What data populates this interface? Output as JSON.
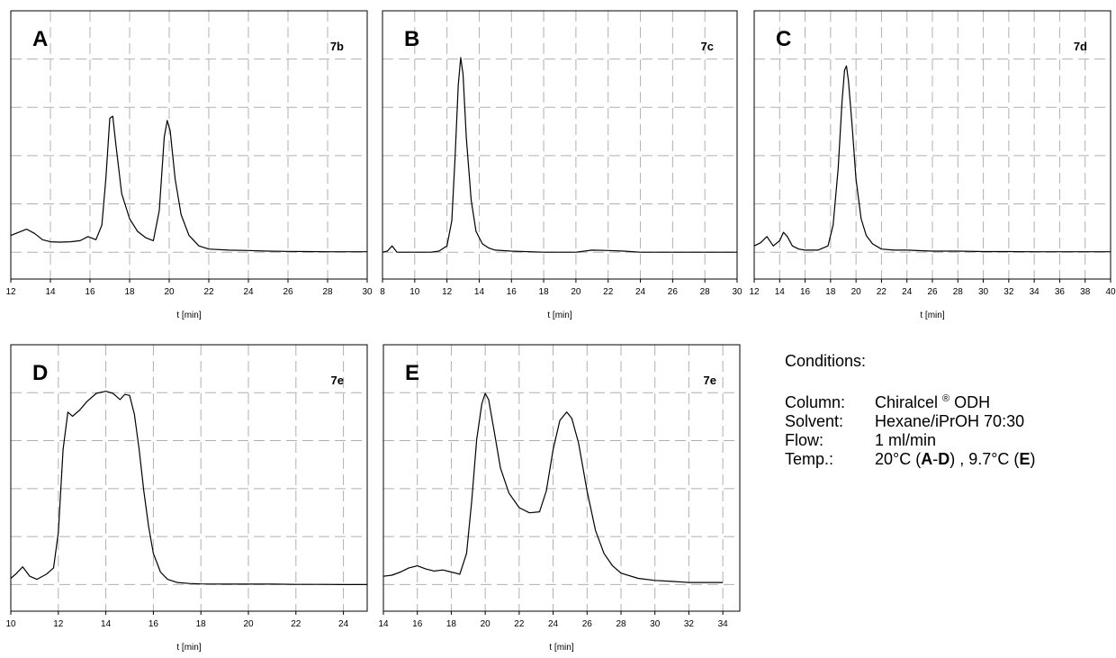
{
  "chart_data": [
    {
      "type": "line",
      "panel": "A",
      "label": "7b",
      "xlabel": "t [min]",
      "xlim": [
        12,
        30
      ],
      "xticks": [
        12,
        14,
        16,
        18,
        20,
        22,
        24,
        26,
        28,
        30
      ],
      "ylim": [
        0,
        10
      ],
      "series": [
        {
          "x": [
            12,
            12.4,
            12.8,
            13.2,
            13.6,
            14,
            14.5,
            15,
            15.5,
            15.9,
            16.3,
            16.6,
            16.8,
            17,
            17.15,
            17.3,
            17.6,
            18,
            18.4,
            18.8,
            19.2,
            19.5,
            19.75,
            19.9,
            20.05,
            20.3,
            20.6,
            21,
            21.5,
            22,
            23,
            24,
            25,
            26,
            27,
            28,
            29,
            30
          ],
          "y": [
            0.8,
            0.95,
            1.1,
            0.9,
            0.6,
            0.5,
            0.48,
            0.5,
            0.55,
            0.75,
            0.6,
            1.3,
            3.5,
            6.4,
            6.5,
            5.2,
            2.8,
            1.6,
            1.0,
            0.7,
            0.55,
            2.0,
            5.5,
            6.3,
            5.8,
            3.5,
            1.8,
            0.8,
            0.3,
            0.15,
            0.1,
            0.08,
            0.05,
            0.04,
            0.03,
            0.02,
            0.02,
            0.02
          ]
        }
      ]
    },
    {
      "type": "line",
      "panel": "B",
      "label": "7c",
      "xlabel": "t [min]",
      "xlim": [
        8,
        30
      ],
      "xticks": [
        8,
        10,
        12,
        14,
        16,
        18,
        20,
        22,
        24,
        26,
        28,
        30
      ],
      "ylim": [
        0,
        10
      ],
      "series": [
        {
          "x": [
            8,
            8.3,
            8.6,
            8.9,
            9.5,
            10,
            10.5,
            11,
            11.5,
            12,
            12.3,
            12.5,
            12.7,
            12.85,
            13,
            13.2,
            13.5,
            13.8,
            14.2,
            14.6,
            15,
            16,
            18,
            20,
            21,
            22,
            23,
            24,
            26,
            28,
            30
          ],
          "y": [
            0,
            0.05,
            0.3,
            0.0,
            0.0,
            0.0,
            0.0,
            0.0,
            0.05,
            0.3,
            1.5,
            4.5,
            8.0,
            9.3,
            8.5,
            5.5,
            2.5,
            1.0,
            0.4,
            0.2,
            0.1,
            0.05,
            0.0,
            0.0,
            0.1,
            0.08,
            0.05,
            0.0,
            0.0,
            0.0,
            0.0
          ]
        }
      ]
    },
    {
      "type": "line",
      "panel": "C",
      "label": "7d",
      "xlabel": "t [min]",
      "xlim": [
        12,
        40
      ],
      "xticks": [
        12,
        14,
        16,
        18,
        20,
        22,
        24,
        26,
        28,
        30,
        32,
        34,
        36,
        38,
        40
      ],
      "ylim": [
        0,
        10
      ],
      "series": [
        {
          "x": [
            12,
            12.5,
            13,
            13.5,
            14,
            14.3,
            14.6,
            15,
            15.5,
            16,
            17,
            17.8,
            18.2,
            18.6,
            18.9,
            19.1,
            19.25,
            19.4,
            19.7,
            20,
            20.4,
            20.8,
            21.3,
            22,
            23,
            24,
            26,
            28,
            30,
            32,
            34,
            36,
            38,
            40
          ],
          "y": [
            0.3,
            0.45,
            0.75,
            0.3,
            0.55,
            0.95,
            0.75,
            0.3,
            0.15,
            0.1,
            0.1,
            0.3,
            1.3,
            4.0,
            7.2,
            8.7,
            8.9,
            8.2,
            6.0,
            3.5,
            1.6,
            0.8,
            0.4,
            0.15,
            0.1,
            0.1,
            0.05,
            0.05,
            0.03,
            0.03,
            0.02,
            0.02,
            0.02,
            0.02
          ]
        }
      ]
    },
    {
      "type": "line",
      "panel": "D",
      "label": "7e",
      "xlabel": "t [min]",
      "xlim": [
        10,
        25
      ],
      "xticks": [
        10,
        12,
        14,
        16,
        18,
        20,
        22,
        24
      ],
      "ylim": [
        0,
        10
      ],
      "series": [
        {
          "x": [
            10,
            10.2,
            10.5,
            10.8,
            11.1,
            11.5,
            11.8,
            12,
            12.2,
            12.4,
            12.6,
            12.9,
            13.2,
            13.6,
            14,
            14.3,
            14.6,
            14.8,
            15,
            15.2,
            15.4,
            15.6,
            15.8,
            16,
            16.3,
            16.6,
            17,
            17.5,
            18,
            19,
            20,
            21,
            22,
            23,
            24,
            25
          ],
          "y": [
            0.3,
            0.5,
            0.85,
            0.4,
            0.25,
            0.5,
            0.8,
            2.5,
            6.5,
            8.3,
            8.1,
            8.4,
            8.8,
            9.2,
            9.3,
            9.2,
            8.9,
            9.15,
            9.1,
            8.2,
            6.5,
            4.5,
            2.8,
            1.5,
            0.6,
            0.25,
            0.1,
            0.05,
            0.03,
            0.02,
            0.02,
            0.02,
            0.01,
            0.01,
            0.0,
            0.0
          ]
        }
      ]
    },
    {
      "type": "line",
      "panel": "E",
      "label": "7e",
      "xlabel": "t [min]",
      "xlim": [
        14,
        35
      ],
      "xticks": [
        14,
        16,
        18,
        20,
        22,
        24,
        26,
        28,
        30,
        32,
        34
      ],
      "ylim": [
        0,
        10
      ],
      "series": [
        {
          "x": [
            14,
            14.5,
            15,
            15.5,
            16,
            16.5,
            17,
            17.5,
            18,
            18.5,
            18.9,
            19.2,
            19.5,
            19.8,
            20,
            20.2,
            20.5,
            20.9,
            21.4,
            22,
            22.6,
            23.2,
            23.6,
            24,
            24.4,
            24.8,
            25.1,
            25.5,
            26,
            26.5,
            27,
            27.5,
            28,
            29,
            30,
            31,
            32,
            33,
            34
          ],
          "y": [
            0.4,
            0.45,
            0.6,
            0.8,
            0.9,
            0.75,
            0.65,
            0.7,
            0.6,
            0.5,
            1.5,
            4.0,
            7.0,
            8.7,
            9.2,
            8.9,
            7.5,
            5.6,
            4.4,
            3.7,
            3.45,
            3.5,
            4.5,
            6.5,
            7.9,
            8.3,
            8.0,
            6.8,
            4.5,
            2.6,
            1.5,
            0.9,
            0.55,
            0.3,
            0.2,
            0.15,
            0.1,
            0.1,
            0.1
          ]
        }
      ]
    }
  ],
  "conditions": {
    "title": "Conditions:",
    "column_key": "Column:",
    "column_value_before": "Chiralcel",
    "column_reg": "®",
    "column_value_after": "ODH",
    "solvent_key": "Solvent:",
    "solvent_value": "Hexane/iPrOH 70:30",
    "flow_key": "Flow:",
    "flow_value": "1 ml/min",
    "temp_key": "Temp.:",
    "temp_part1": "20°C (",
    "temp_bold1": "A",
    "temp_dash": "-",
    "temp_bold2": "D",
    "temp_part2": ") , 9.7°C (",
    "temp_bold3": "E",
    "temp_part3": ")"
  }
}
